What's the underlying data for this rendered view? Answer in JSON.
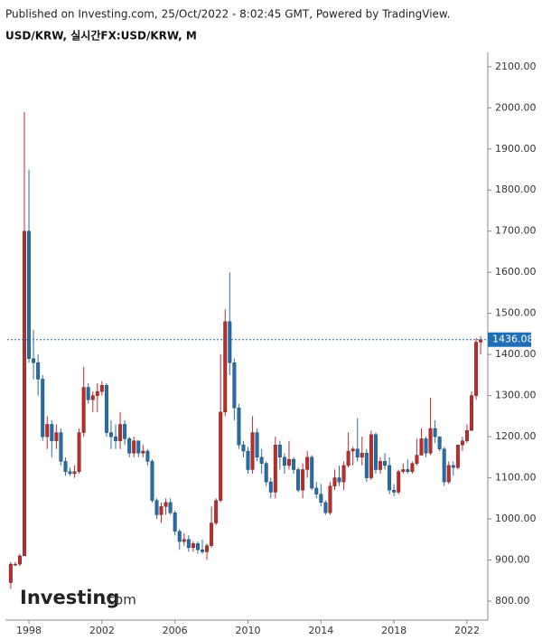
{
  "header": "Published on Investing.com, 25/Oct/2022 - 8:02:45 GMT, Powered by TradingView.",
  "logo": {
    "brand": "Investing",
    "suffix": ".com"
  },
  "chart_data": {
    "type": "candlestick",
    "title": "USD/KRW, 실시간FX:USD/KRW, M",
    "up_color": "#c62828",
    "down_color": "#1f6fb2",
    "last_value": 1436.08,
    "last_color": "#1e6fb5",
    "xlim": [
      1996.81,
      2023.14
    ],
    "xticks": [
      1998,
      2002,
      2006,
      2010,
      2014,
      2018,
      2022
    ],
    "ylim": [
      756,
      2126
    ],
    "yticks": [
      {
        "value": 800,
        "label": "800.00"
      },
      {
        "value": 900,
        "label": "900.00"
      },
      {
        "value": 1000,
        "label": "1000.00"
      },
      {
        "value": 1100,
        "label": "1100.00"
      },
      {
        "value": 1200,
        "label": "1200.00"
      },
      {
        "value": 1300,
        "label": "1300.00"
      },
      {
        "value": 1400,
        "label": "1400.00"
      },
      {
        "value": 1500,
        "label": "1500.00"
      },
      {
        "value": 1600,
        "label": "1600.00"
      },
      {
        "value": 1700,
        "label": "1700.00"
      },
      {
        "value": 1800,
        "label": "1800.00"
      },
      {
        "value": 1900,
        "label": "1900.00"
      },
      {
        "value": 2000,
        "label": "2000.00"
      },
      {
        "value": 2100,
        "label": "2100.00"
      }
    ],
    "x": [
      1997.0,
      1997.25,
      1997.5,
      1997.75,
      1998.0,
      1998.25,
      1998.5,
      1998.75,
      1999.0,
      1999.25,
      1999.5,
      1999.75,
      2000.0,
      2000.25,
      2000.5,
      2000.75,
      2001.0,
      2001.25,
      2001.5,
      2001.75,
      2002.0,
      2002.25,
      2002.5,
      2002.75,
      2003.0,
      2003.25,
      2003.5,
      2003.75,
      2004.0,
      2004.25,
      2004.5,
      2004.75,
      2005.0,
      2005.25,
      2005.5,
      2005.75,
      2006.0,
      2006.25,
      2006.5,
      2006.75,
      2007.0,
      2007.25,
      2007.5,
      2007.75,
      2008.0,
      2008.25,
      2008.5,
      2008.75,
      2009.0,
      2009.25,
      2009.5,
      2009.75,
      2010.0,
      2010.25,
      2010.5,
      2010.75,
      2011.0,
      2011.25,
      2011.5,
      2011.75,
      2012.0,
      2012.25,
      2012.5,
      2012.75,
      2013.0,
      2013.25,
      2013.5,
      2013.75,
      2014.0,
      2014.25,
      2014.5,
      2014.75,
      2015.0,
      2015.25,
      2015.5,
      2015.75,
      2016.0,
      2016.25,
      2016.5,
      2016.75,
      2017.0,
      2017.25,
      2017.5,
      2017.75,
      2018.0,
      2018.25,
      2018.5,
      2018.75,
      2019.0,
      2019.25,
      2019.5,
      2019.75,
      2020.0,
      2020.25,
      2020.5,
      2020.75,
      2021.0,
      2021.25,
      2021.5,
      2021.75,
      2022.0,
      2022.25,
      2022.5,
      2022.75
    ],
    "open": [
      845,
      890,
      890,
      910,
      1700,
      1390,
      1380,
      1340,
      1200,
      1230,
      1190,
      1210,
      1140,
      1115,
      1110,
      1115,
      1210,
      1320,
      1290,
      1300,
      1310,
      1325,
      1210,
      1200,
      1190,
      1230,
      1195,
      1160,
      1190,
      1160,
      1165,
      1140,
      1045,
      1010,
      1030,
      1040,
      1015,
      970,
      945,
      950,
      930,
      940,
      925,
      920,
      935,
      990,
      1045,
      1260,
      1480,
      1380,
      1270,
      1180,
      1165,
      1120,
      1210,
      1150,
      1135,
      1090,
      1065,
      1180,
      1150,
      1130,
      1145,
      1120,
      1070,
      1120,
      1150,
      1075,
      1060,
      1040,
      1015,
      1080,
      1100,
      1090,
      1130,
      1165,
      1170,
      1150,
      1160,
      1100,
      1205,
      1120,
      1140,
      1130,
      1070,
      1065,
      1115,
      1120,
      1115,
      1135,
      1155,
      1195,
      1160,
      1220,
      1200,
      1170,
      1090,
      1130,
      1125,
      1180,
      1190,
      1215,
      1300,
      1430
    ],
    "high": [
      895,
      895,
      915,
      1990,
      1850,
      1460,
      1400,
      1350,
      1250,
      1240,
      1230,
      1220,
      1150,
      1125,
      1130,
      1220,
      1370,
      1330,
      1310,
      1330,
      1335,
      1330,
      1240,
      1230,
      1260,
      1240,
      1200,
      1200,
      1190,
      1180,
      1170,
      1145,
      1050,
      1040,
      1050,
      1050,
      1020,
      975,
      965,
      960,
      945,
      945,
      950,
      940,
      1030,
      1050,
      1400,
      1510,
      1600,
      1390,
      1280,
      1190,
      1175,
      1250,
      1220,
      1170,
      1140,
      1100,
      1200,
      1190,
      1160,
      1190,
      1150,
      1125,
      1135,
      1165,
      1155,
      1090,
      1085,
      1045,
      1090,
      1120,
      1130,
      1140,
      1210,
      1175,
      1245,
      1200,
      1170,
      1215,
      1210,
      1150,
      1160,
      1150,
      1085,
      1120,
      1135,
      1145,
      1140,
      1195,
      1220,
      1200,
      1295,
      1240,
      1200,
      1175,
      1140,
      1140,
      1180,
      1200,
      1230,
      1310,
      1440,
      1445
    ],
    "low": [
      830,
      885,
      885,
      910,
      1380,
      1340,
      1300,
      1190,
      1170,
      1150,
      1170,
      1130,
      1105,
      1105,
      1100,
      1110,
      1200,
      1280,
      1260,
      1260,
      1300,
      1200,
      1170,
      1170,
      1170,
      1180,
      1150,
      1150,
      1150,
      1150,
      1130,
      1040,
      1000,
      990,
      1010,
      1010,
      960,
      925,
      935,
      920,
      920,
      915,
      915,
      900,
      930,
      985,
      1040,
      1250,
      1350,
      1240,
      1170,
      1150,
      1110,
      1110,
      1140,
      1110,
      1080,
      1050,
      1050,
      1120,
      1110,
      1120,
      1110,
      1065,
      1050,
      1100,
      1070,
      1050,
      1030,
      1010,
      1010,
      1070,
      1080,
      1070,
      1125,
      1130,
      1140,
      1130,
      1090,
      1095,
      1110,
      1110,
      1120,
      1060,
      1055,
      1060,
      1110,
      1110,
      1110,
      1130,
      1155,
      1150,
      1155,
      1185,
      1165,
      1080,
      1085,
      1105,
      1120,
      1165,
      1185,
      1215,
      1290,
      1400
    ],
    "close": [
      890,
      890,
      910,
      1700,
      1390,
      1380,
      1340,
      1200,
      1230,
      1190,
      1210,
      1140,
      1115,
      1110,
      1115,
      1210,
      1320,
      1290,
      1300,
      1310,
      1325,
      1210,
      1200,
      1190,
      1230,
      1195,
      1160,
      1190,
      1160,
      1165,
      1140,
      1045,
      1010,
      1030,
      1040,
      1015,
      970,
      945,
      950,
      930,
      940,
      925,
      920,
      935,
      990,
      1045,
      1260,
      1480,
      1380,
      1270,
      1180,
      1165,
      1120,
      1210,
      1150,
      1135,
      1090,
      1065,
      1180,
      1150,
      1130,
      1145,
      1120,
      1070,
      1120,
      1150,
      1075,
      1060,
      1040,
      1015,
      1080,
      1100,
      1090,
      1130,
      1165,
      1170,
      1150,
      1160,
      1100,
      1205,
      1120,
      1140,
      1130,
      1070,
      1065,
      1115,
      1120,
      1115,
      1135,
      1155,
      1195,
      1160,
      1220,
      1200,
      1170,
      1090,
      1130,
      1125,
      1180,
      1190,
      1215,
      1300,
      1430,
      1436.08
    ]
  }
}
